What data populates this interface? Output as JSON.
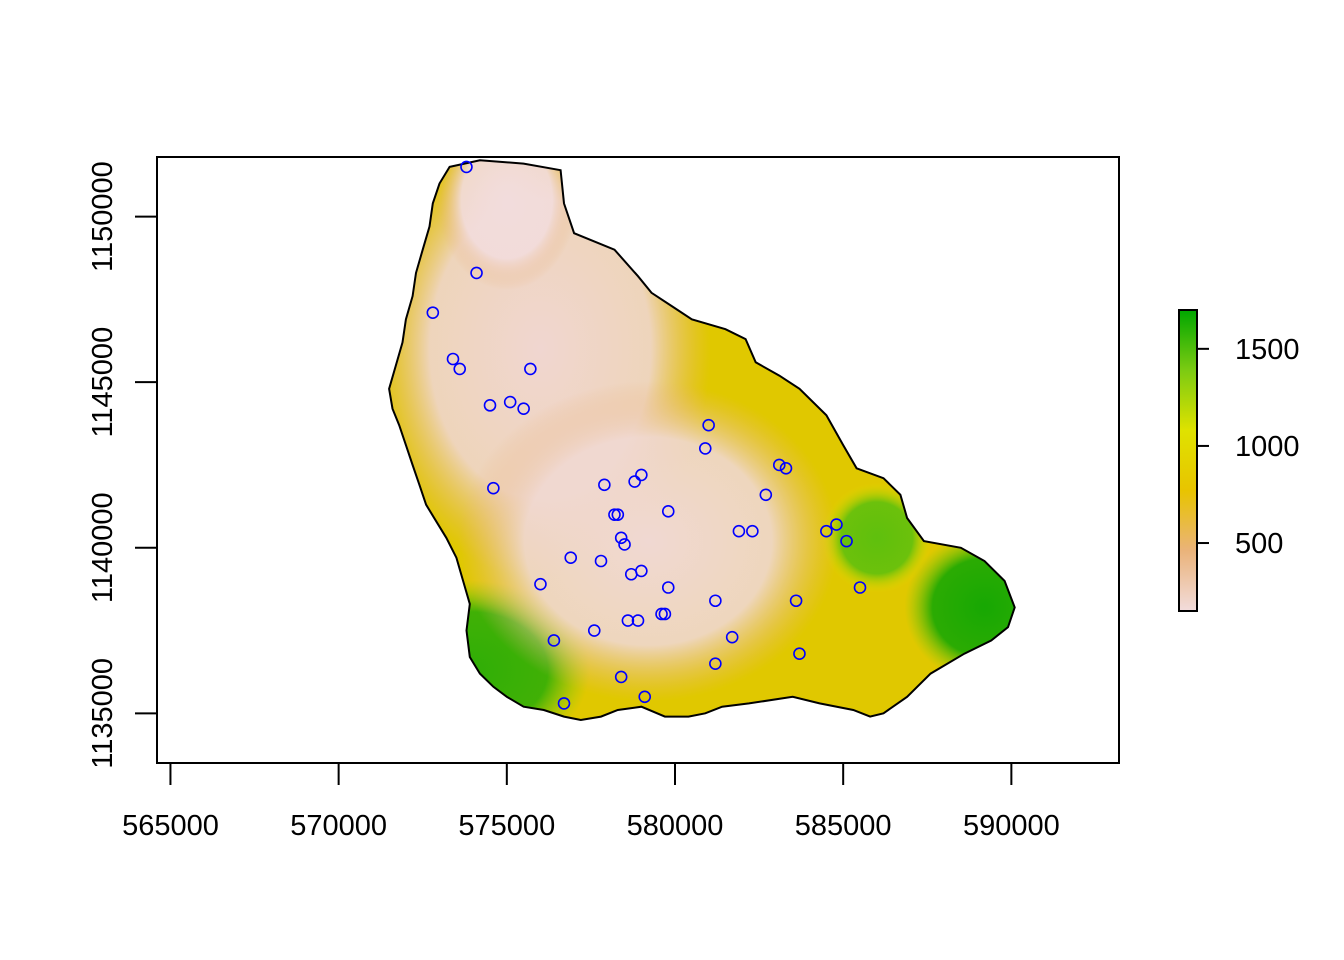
{
  "chart_data": {
    "type": "heatmap",
    "title": "",
    "xlabel": "",
    "ylabel": "",
    "xlim": [
      564600,
      593200
    ],
    "ylim": [
      1133500,
      1151800
    ],
    "x_ticks": [
      565000,
      570000,
      575000,
      580000,
      585000,
      590000
    ],
    "x_tick_labels": [
      "565000",
      "570000",
      "575000",
      "580000",
      "585000",
      "590000"
    ],
    "y_ticks": [
      1135000,
      1140000,
      1145000,
      1150000
    ],
    "y_tick_labels": [
      "1135000",
      "1140000",
      "1145000",
      "1150000"
    ],
    "grid": false,
    "raster": {
      "value_range": [
        150,
        1700
      ],
      "palette": [
        "#f2dcdc",
        "#eab37a",
        "#e8c400",
        "#dfe200",
        "#7ccb12",
        "#00a600"
      ],
      "description_boundary": [
        [
          573300,
          1151500
        ],
        [
          574200,
          1151700
        ],
        [
          575500,
          1151600
        ],
        [
          576600,
          1151400
        ],
        [
          576700,
          1150400
        ],
        [
          577000,
          1149500
        ],
        [
          578200,
          1149000
        ],
        [
          578900,
          1148200
        ],
        [
          579300,
          1147700
        ],
        [
          579900,
          1147300
        ],
        [
          580500,
          1146900
        ],
        [
          581500,
          1146600
        ],
        [
          582100,
          1146300
        ],
        [
          582400,
          1145600
        ],
        [
          583100,
          1145200
        ],
        [
          583700,
          1144800
        ],
        [
          584500,
          1144000
        ],
        [
          585000,
          1143100
        ],
        [
          585400,
          1142400
        ],
        [
          586200,
          1142100
        ],
        [
          586700,
          1141600
        ],
        [
          586900,
          1140900
        ],
        [
          587400,
          1140200
        ],
        [
          588500,
          1140000
        ],
        [
          589200,
          1139600
        ],
        [
          589800,
          1139000
        ],
        [
          590100,
          1138200
        ],
        [
          589900,
          1137600
        ],
        [
          589400,
          1137200
        ],
        [
          588600,
          1136800
        ],
        [
          587600,
          1136200
        ],
        [
          586900,
          1135500
        ],
        [
          586200,
          1135000
        ],
        [
          585800,
          1134900
        ],
        [
          585300,
          1135100
        ],
        [
          584300,
          1135300
        ],
        [
          583500,
          1135500
        ],
        [
          582200,
          1135300
        ],
        [
          581400,
          1135200
        ],
        [
          580900,
          1135000
        ],
        [
          580400,
          1134900
        ],
        [
          579700,
          1134900
        ],
        [
          579000,
          1135200
        ],
        [
          578300,
          1135100
        ],
        [
          577800,
          1134900
        ],
        [
          577200,
          1134800
        ],
        [
          576700,
          1134900
        ],
        [
          576100,
          1135100
        ],
        [
          575500,
          1135200
        ],
        [
          575000,
          1135500
        ],
        [
          574600,
          1135800
        ],
        [
          574200,
          1136200
        ],
        [
          573900,
          1136700
        ],
        [
          573800,
          1137500
        ],
        [
          573900,
          1138300
        ],
        [
          573700,
          1139000
        ],
        [
          573500,
          1139700
        ],
        [
          573200,
          1140300
        ],
        [
          572900,
          1140800
        ],
        [
          572600,
          1141300
        ],
        [
          572400,
          1141900
        ],
        [
          572200,
          1142500
        ],
        [
          572000,
          1143100
        ],
        [
          571800,
          1143700
        ],
        [
          571600,
          1144200
        ],
        [
          571500,
          1144800
        ],
        [
          571700,
          1145500
        ],
        [
          571900,
          1146200
        ],
        [
          572000,
          1146900
        ],
        [
          572200,
          1147600
        ],
        [
          572300,
          1148300
        ],
        [
          572500,
          1149000
        ],
        [
          572700,
          1149700
        ],
        [
          572800,
          1150400
        ],
        [
          573000,
          1151000
        ]
      ]
    },
    "legend": {
      "position": "right",
      "ticks": [
        500,
        1000,
        1500
      ],
      "tick_labels": [
        "500",
        "1000",
        "1500"
      ],
      "range": [
        150,
        1700
      ]
    },
    "points": {
      "color": "#0000ff",
      "shape": "open-circle",
      "x": [
        573800,
        574100,
        572800,
        573400,
        573600,
        575700,
        574500,
        575100,
        575500,
        581000,
        580900,
        583100,
        583300,
        582700,
        579000,
        578800,
        577900,
        574600,
        579800,
        578200,
        578300,
        584800,
        584500,
        585100,
        581900,
        582300,
        578400,
        578500,
        576900,
        577800,
        579000,
        578700,
        576000,
        579800,
        581200,
        583600,
        585500,
        578600,
        578900,
        579600,
        579700,
        577600,
        576400,
        581700,
        583700,
        581200,
        578400,
        579100,
        576700
      ],
      "y": [
        1151500,
        1148300,
        1147100,
        1145700,
        1145400,
        1145400,
        1144300,
        1144400,
        1144200,
        1143700,
        1143000,
        1142500,
        1142400,
        1141600,
        1142200,
        1142000,
        1141900,
        1141800,
        1141100,
        1141000,
        1141000,
        1140700,
        1140500,
        1140200,
        1140500,
        1140500,
        1140300,
        1140100,
        1139700,
        1139600,
        1139300,
        1139200,
        1138900,
        1138800,
        1138400,
        1138400,
        1138800,
        1137800,
        1137800,
        1138000,
        1138000,
        1137500,
        1137200,
        1137300,
        1136800,
        1136500,
        1136100,
        1135500,
        1135300
      ]
    }
  }
}
